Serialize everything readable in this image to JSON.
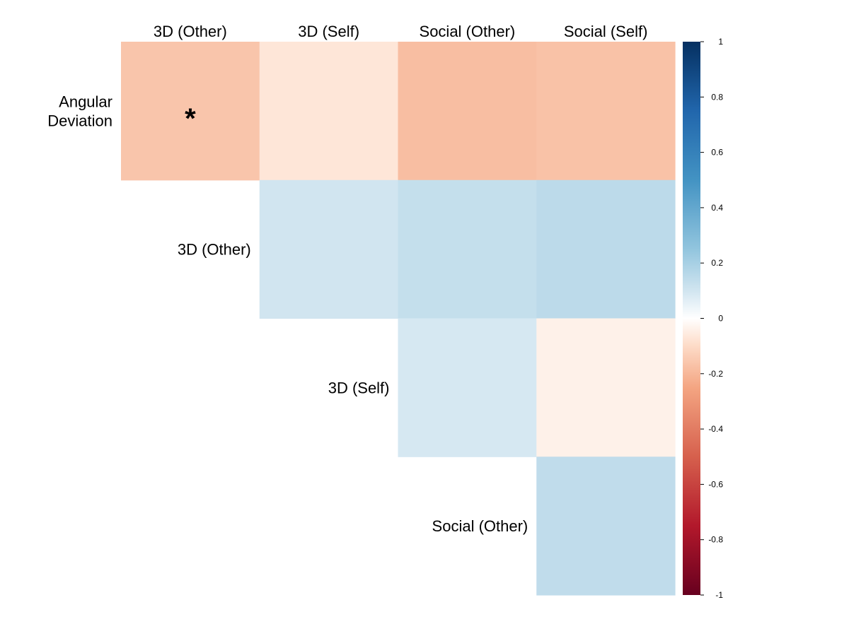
{
  "chart_data": {
    "type": "heatmap",
    "columns": [
      "3D (Other)",
      "3D (Self)",
      "Social (Other)",
      "Social (Self)"
    ],
    "rows": [
      {
        "label_lines": [
          "Angular",
          "Deviation"
        ],
        "values": [
          -0.16,
          -0.07,
          -0.18,
          -0.17
        ],
        "significance": [
          "*",
          "",
          "",
          ""
        ]
      },
      {
        "label_lines": [
          "3D (Other)"
        ],
        "values": [
          null,
          0.1,
          0.13,
          0.15
        ],
        "significance": [
          "",
          "",
          "",
          ""
        ]
      },
      {
        "label_lines": [
          "3D (Self)"
        ],
        "values": [
          null,
          null,
          0.09,
          -0.04
        ],
        "significance": [
          "",
          "",
          "",
          ""
        ]
      },
      {
        "label_lines": [
          "Social (Other)"
        ],
        "values": [
          null,
          null,
          null,
          0.14
        ],
        "significance": [
          "",
          "",
          "",
          ""
        ]
      }
    ],
    "color_scale": {
      "min": -1,
      "max": 1,
      "ticks": [
        1,
        0.8,
        0.6,
        0.4,
        0.2,
        0,
        -0.2,
        -0.4,
        -0.6,
        -0.8,
        -1
      ],
      "tick_labels": [
        "1",
        "0.8",
        "0.6",
        "0.4",
        "0.2",
        "0",
        "-0.2",
        "-0.4",
        "-0.6",
        "-0.8",
        "-1"
      ],
      "stops": [
        {
          "value": -1,
          "color": "#67001F"
        },
        {
          "value": -0.75,
          "color": "#B2182B"
        },
        {
          "value": -0.5,
          "color": "#D6604D"
        },
        {
          "value": -0.25,
          "color": "#F4A582"
        },
        {
          "value": -0.1,
          "color": "#FDDBC7"
        },
        {
          "value": 0,
          "color": "#FFFFFF"
        },
        {
          "value": 0.1,
          "color": "#D1E5F0"
        },
        {
          "value": 0.25,
          "color": "#92C5DE"
        },
        {
          "value": 0.5,
          "color": "#4393C3"
        },
        {
          "value": 0.75,
          "color": "#2166AC"
        },
        {
          "value": 1,
          "color": "#053061"
        }
      ]
    },
    "legend_placement": "right"
  }
}
